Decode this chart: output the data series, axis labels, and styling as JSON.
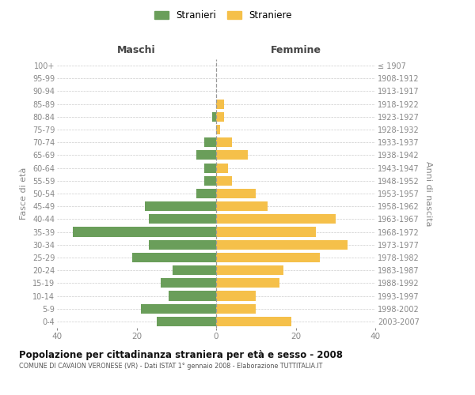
{
  "age_groups": [
    "0-4",
    "5-9",
    "10-14",
    "15-19",
    "20-24",
    "25-29",
    "30-34",
    "35-39",
    "40-44",
    "45-49",
    "50-54",
    "55-59",
    "60-64",
    "65-69",
    "70-74",
    "75-79",
    "80-84",
    "85-89",
    "90-94",
    "95-99",
    "100+"
  ],
  "birth_years": [
    "2003-2007",
    "1998-2002",
    "1993-1997",
    "1988-1992",
    "1983-1987",
    "1978-1982",
    "1973-1977",
    "1968-1972",
    "1963-1967",
    "1958-1962",
    "1953-1957",
    "1948-1952",
    "1943-1947",
    "1938-1942",
    "1933-1937",
    "1928-1932",
    "1923-1927",
    "1918-1922",
    "1913-1917",
    "1908-1912",
    "≤ 1907"
  ],
  "maschi": [
    15,
    19,
    12,
    14,
    11,
    21,
    17,
    36,
    17,
    18,
    5,
    3,
    3,
    5,
    3,
    0,
    1,
    0,
    0,
    0,
    0
  ],
  "femmine": [
    19,
    10,
    10,
    16,
    17,
    26,
    33,
    25,
    30,
    13,
    10,
    4,
    3,
    8,
    4,
    1,
    2,
    2,
    0,
    0,
    0
  ],
  "color_maschi": "#6a9e5a",
  "color_femmine": "#f5c04a",
  "title": "Popolazione per cittadinanza straniera per età e sesso - 2008",
  "subtitle": "COMUNE DI CAVAION VERONESE (VR) - Dati ISTAT 1° gennaio 2008 - Elaborazione TUTTITALIA.IT",
  "ylabel_left": "Fasce di età",
  "ylabel_right": "Anni di nascita",
  "xlabel_maschi": "Maschi",
  "xlabel_femmine": "Femmine",
  "legend_maschi": "Stranieri",
  "legend_femmine": "Straniere",
  "xlim": 40,
  "background_color": "#ffffff",
  "grid_color": "#cccccc"
}
